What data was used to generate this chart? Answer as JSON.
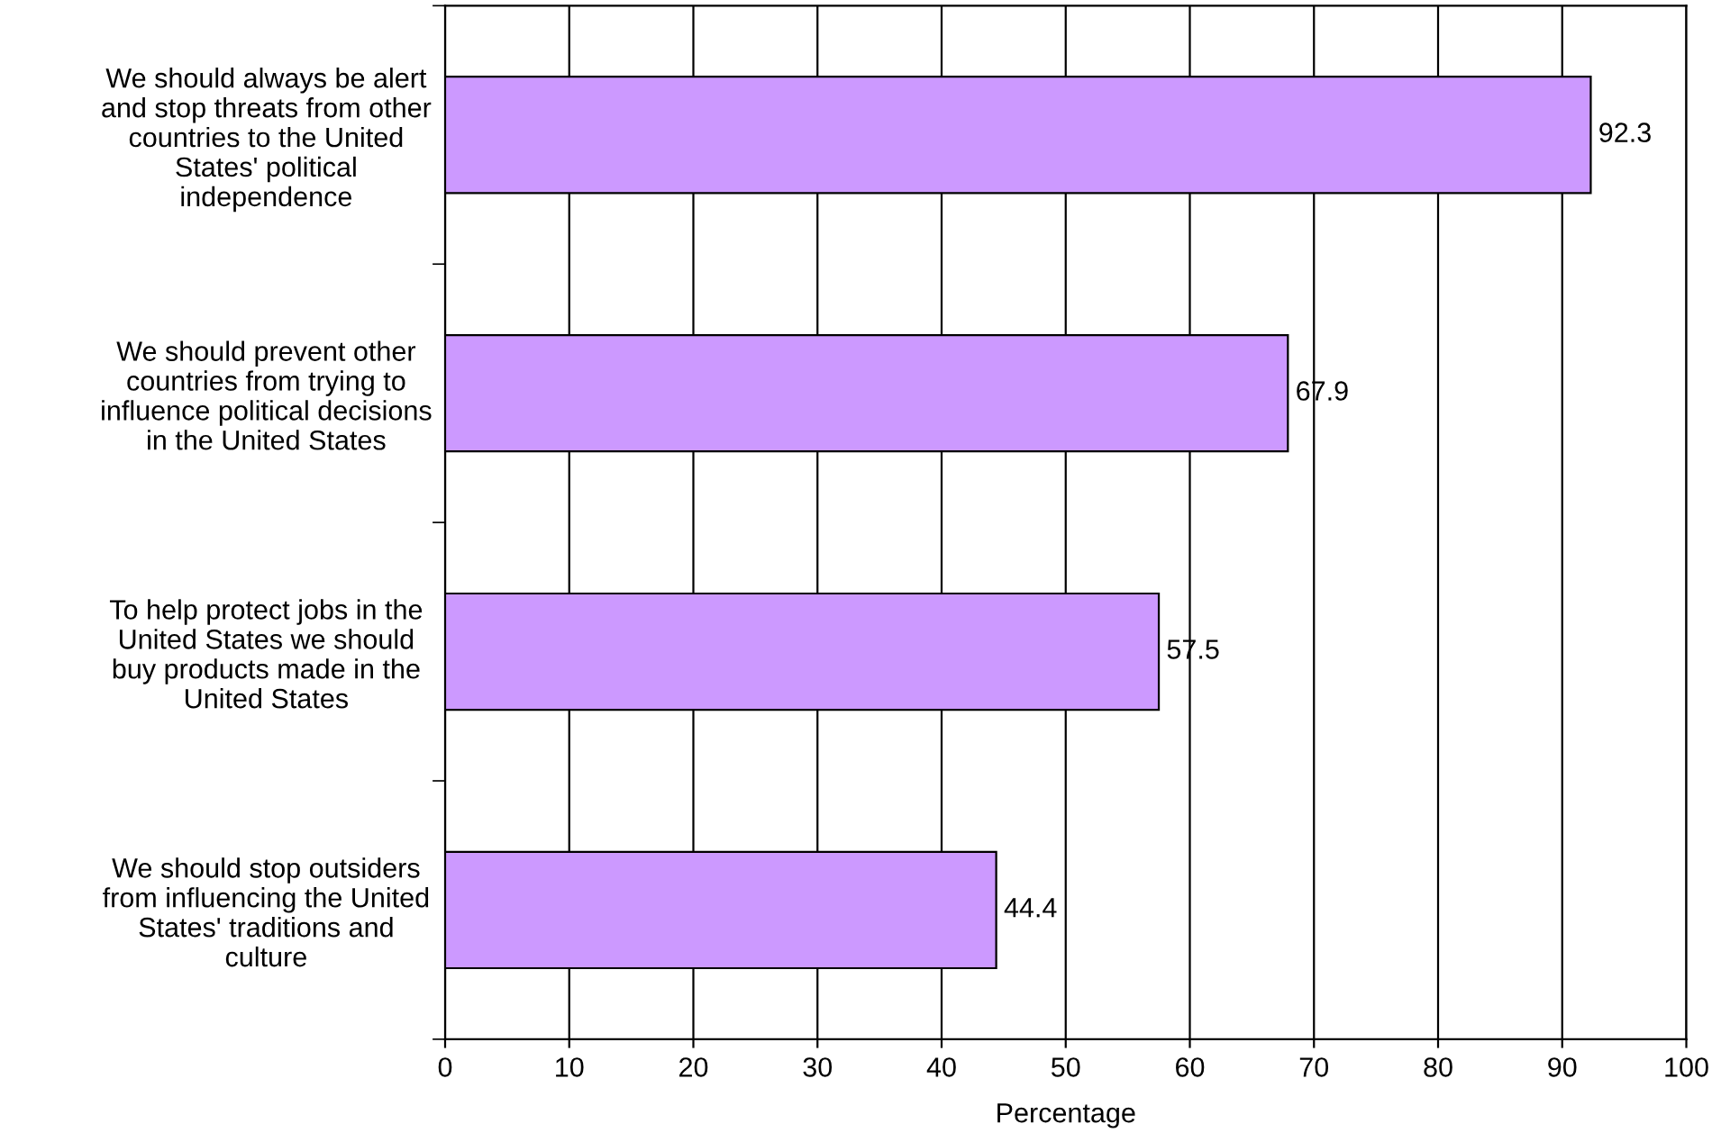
{
  "chart_data": {
    "type": "bar",
    "orientation": "horizontal",
    "xlabel": "Percentage",
    "categories": [
      "We should always be alert\nand stop threats from other\ncountries to the United\nStates' political\nindependence",
      "We should prevent other\ncountries from trying to\ninfluence political decisions\nin the United States",
      "To help protect jobs in the\nUnited States we should\nbuy products made in the\nUnited States",
      "We should stop outsiders\nfrom influencing the United\nStates' traditions and\nculture"
    ],
    "values": [
      92.3,
      67.9,
      57.5,
      44.4
    ],
    "color": "#cc99ff",
    "data_labels": true,
    "xlim": [
      0,
      100
    ],
    "xticks": [
      0,
      10,
      20,
      30,
      40,
      50,
      60,
      70,
      80,
      90,
      100
    ],
    "grid": "x",
    "legend": false
  }
}
